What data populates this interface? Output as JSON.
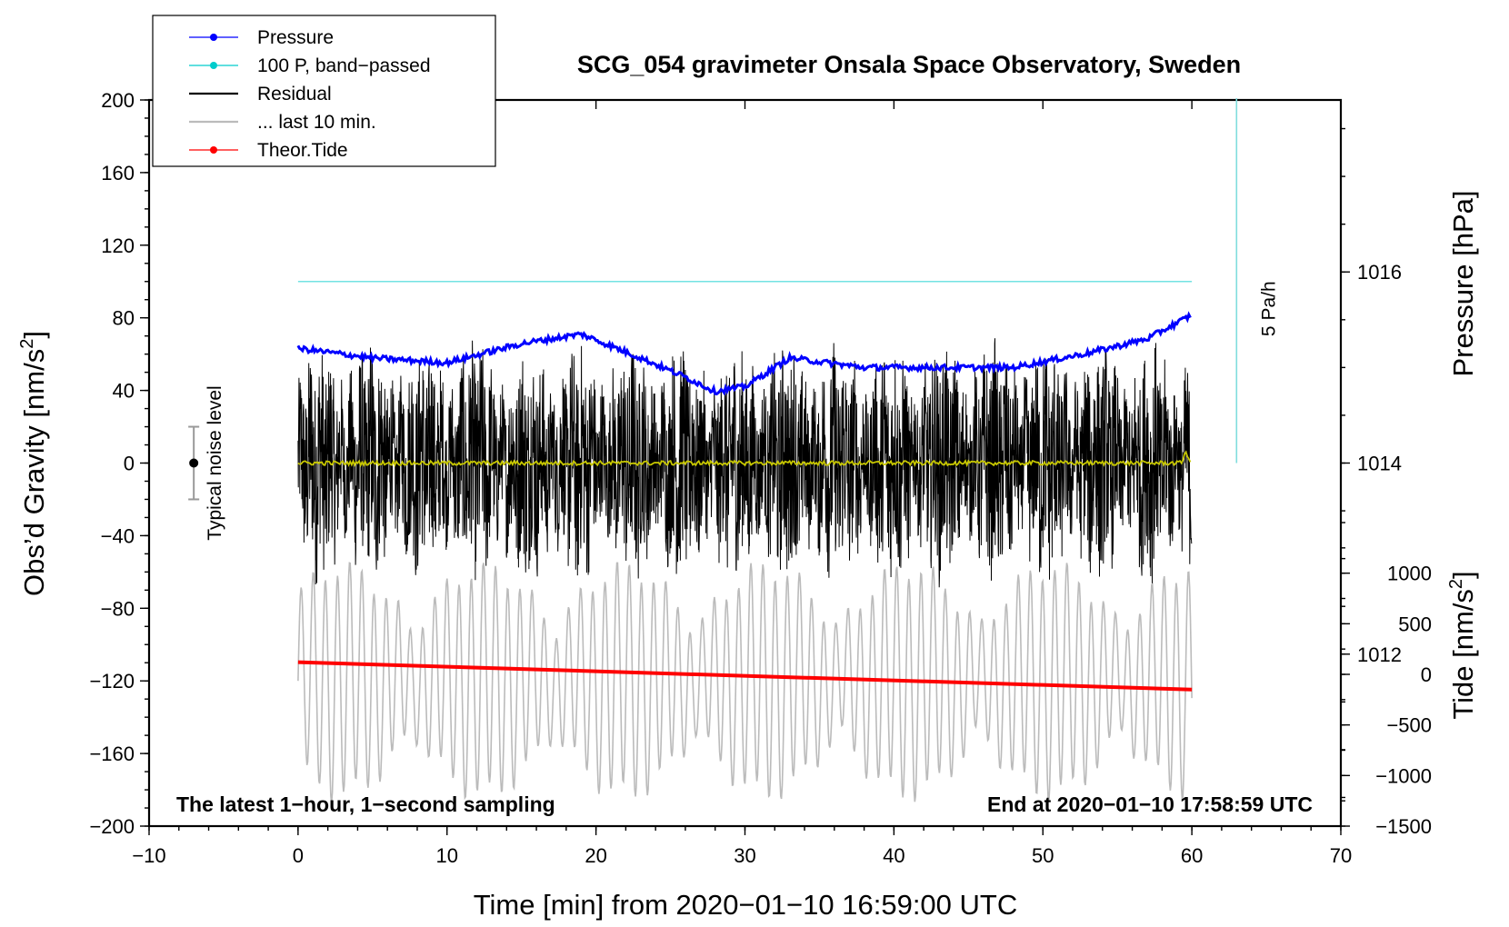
{
  "chart_data": {
    "type": "line",
    "title": "SCG_054 gravimeter Onsala Space Observatory, Sweden",
    "xlabel": "Time [min] from 2020−01−10 16:59:00 UTC",
    "ylabel_left_main": "Obs’d Gravity [nm/s",
    "ylabel_left_sup": "2",
    "ylabel_left_end": "]",
    "ylabel_right_top": "Pressure [hPa]",
    "ylabel_right_bottom_main": "Tide [nm/s",
    "ylabel_right_bottom_sup": "2",
    "ylabel_right_bottom_end": "]",
    "xlim": [
      -10,
      70
    ],
    "ylim": [
      -200,
      200
    ],
    "pressure_axis": {
      "range": [
        1010.2,
        1017.8
      ],
      "ticks": [
        1012,
        1014,
        1016
      ],
      "tick_labels": [
        "1012",
        "1014",
        "1016"
      ]
    },
    "tide_axis": {
      "range": [
        -1500,
        1500
      ],
      "ticks": [
        -1500,
        -1000,
        -500,
        0,
        500,
        1000
      ],
      "tick_labels": [
        "−1500",
        "−1000",
        "−500",
        "0",
        "500",
        "1000"
      ]
    },
    "x_ticks": [
      -10,
      0,
      10,
      20,
      30,
      40,
      50,
      60,
      70
    ],
    "x_tick_labels": [
      "−10",
      "0",
      "10",
      "20",
      "30",
      "40",
      "50",
      "60",
      "70"
    ],
    "y_ticks": [
      -200,
      -160,
      -120,
      -80,
      -40,
      0,
      40,
      80,
      120,
      160,
      200
    ],
    "y_tick_labels": [
      "−200",
      "−160",
      "−120",
      "−80",
      "−40",
      "0",
      "40",
      "80",
      "120",
      "160",
      "200"
    ],
    "legend": [
      {
        "label": "Pressure",
        "color": "#0000ff",
        "marker": true
      },
      {
        "label": "100 P, band−passed",
        "color": "#00cccc",
        "marker": true
      },
      {
        "label": "Residual",
        "color": "#000000",
        "marker": false
      },
      {
        "label": "... last 10 min.",
        "color": "#bbbbbb",
        "marker": false
      },
      {
        "label": "Theor.Tide",
        "color": "#ff0000",
        "marker": true
      }
    ],
    "series": [
      {
        "name": "Pressure",
        "axis": "pressure",
        "color": "#0000ff",
        "x": [
          0,
          5,
          10,
          15,
          19,
          23,
          26,
          28,
          30,
          33,
          38,
          43,
          48,
          53,
          57,
          60
        ],
        "y": [
          1015.2,
          1015.1,
          1015.05,
          1015.25,
          1015.35,
          1015.1,
          1014.9,
          1014.75,
          1014.8,
          1015.1,
          1015.0,
          1015.0,
          1015.0,
          1015.15,
          1015.3,
          1015.55
        ]
      },
      {
        "name": "100 P, band−passed",
        "axis": "gravity",
        "color": "#00cccc",
        "x": [
          0,
          60
        ],
        "y": [
          100,
          100
        ]
      },
      {
        "name": "Residual",
        "axis": "gravity",
        "color": "#000000",
        "x_range": [
          0,
          60
        ],
        "amplitude_range": [
          -80,
          86
        ]
      },
      {
        "name": "Residual smoothed",
        "axis": "gravity",
        "color": "#c8c800",
        "x_range": [
          0,
          60
        ],
        "level": 0
      },
      {
        "name": "... last 10 min.",
        "axis": "gravity",
        "color": "#bbbbbb",
        "x_range": [
          0,
          60
        ],
        "center": -120,
        "amplitude_range": [
          -200,
          -55
        ]
      },
      {
        "name": "Theor.Tide",
        "axis": "tide",
        "color": "#ff0000",
        "x": [
          0,
          60
        ],
        "y": [
          120,
          -150
        ]
      }
    ],
    "noise_marker": {
      "x": -7,
      "y": 0,
      "low": -20,
      "high": 20,
      "label": "Typical noise level"
    },
    "rate_scale": {
      "x": 63,
      "y_low": 0,
      "y_high": 200,
      "label": "5 Pa/h"
    },
    "footer_left": "The latest 1−hour, 1−second sampling",
    "footer_right": "End at 2020−01−10 17:58:59 UTC"
  }
}
